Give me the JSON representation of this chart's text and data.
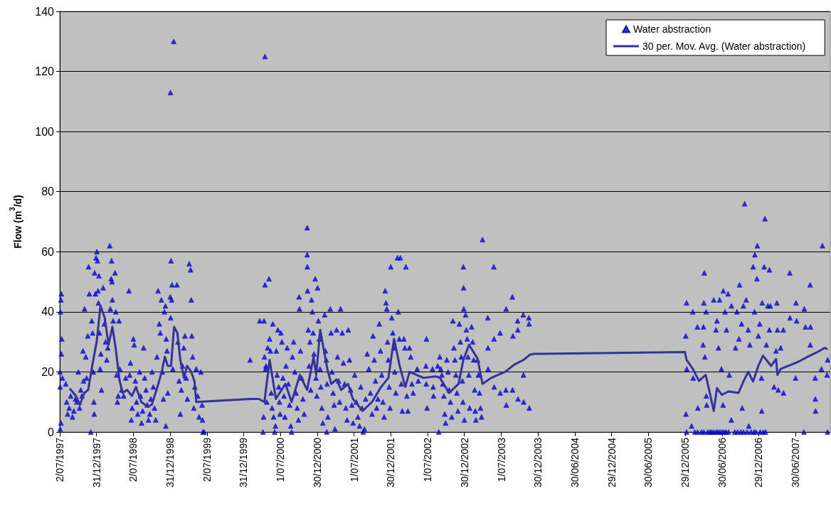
{
  "chart_data": {
    "type": "scatter",
    "ylabel": "Flow (m$^{3}$/d)",
    "xlim": [
      "1997-07-02",
      "2007-12-19"
    ],
    "xticks": [
      {
        "value": "1997-07-02",
        "label": "2/07/1997"
      },
      {
        "value": "1997-12-31",
        "label": "31/12/1997"
      },
      {
        "value": "1998-07-02",
        "label": "2/07/1998"
      },
      {
        "value": "1998-12-31",
        "label": "31/12/1998"
      },
      {
        "value": "1999-07-02",
        "label": "2/07/1999"
      },
      {
        "value": "1999-12-31",
        "label": "31/12/1999"
      },
      {
        "value": "2000-07-01",
        "label": "1/07/2000"
      },
      {
        "value": "2000-12-30",
        "label": "30/12/2000"
      },
      {
        "value": "2001-07-01",
        "label": "1/07/2001"
      },
      {
        "value": "2001-12-30",
        "label": "30/12/2001"
      },
      {
        "value": "2002-07-01",
        "label": "1/07/2002"
      },
      {
        "value": "2002-12-30",
        "label": "30/12/2002"
      },
      {
        "value": "2003-07-01",
        "label": "1/07/2003"
      },
      {
        "value": "2003-12-30",
        "label": "30/12/2003"
      },
      {
        "value": "2004-06-30",
        "label": "30/06/2004"
      },
      {
        "value": "2004-12-29",
        "label": "29/12/2004"
      },
      {
        "value": "2005-06-30",
        "label": "30/06/2005"
      },
      {
        "value": "2005-12-29",
        "label": "29/12/2005"
      },
      {
        "value": "2006-06-30",
        "label": "30/06/2006"
      },
      {
        "value": "2006-12-29",
        "label": "29/12/2006"
      },
      {
        "value": "2007-06-30",
        "label": "30/06/2007"
      }
    ],
    "ylim": [
      0,
      140
    ],
    "yticks": [
      0,
      20,
      40,
      60,
      80,
      100,
      120,
      140
    ],
    "grid": "y",
    "legend": "top right",
    "series": [
      {
        "name": "Water abstraction",
        "marker": "triangle",
        "color": "#0000ff",
        "x": [
          "1997-07-03",
          "1997-07-04",
          "1997-07-05",
          "1997-07-08",
          "1997-07-10",
          "1997-07-12",
          "1997-07-10",
          "1997-07-04",
          "1997-07-08",
          "1997-07-15",
          "1997-08-01",
          "1997-08-05",
          "1997-08-10",
          "1997-08-18",
          "1997-08-25",
          "1997-09-03",
          "1997-09-10",
          "1997-09-18",
          "1997-09-25",
          "1997-10-02",
          "1997-10-08",
          "1997-10-14",
          "1997-10-20",
          "1997-10-25",
          "1997-10-28",
          "1997-11-02",
          "1997-11-08",
          "1997-11-12",
          "1997-11-18",
          "1997-11-22",
          "1997-11-26",
          "1997-12-03",
          "1997-12-08",
          "1997-12-12",
          "1997-12-15",
          "1997-12-18",
          "1997-12-20",
          "1997-12-22",
          "1997-12-26",
          "1997-12-29",
          "1998-01-02",
          "1998-01-05",
          "1998-01-08",
          "1998-01-10",
          "1998-01-12",
          "1998-01-15",
          "1998-01-18",
          "1998-01-22",
          "1998-01-25",
          "1998-02-02",
          "1998-02-08",
          "1998-02-14",
          "1998-02-20",
          "1998-02-25",
          "1998-03-07",
          "1998-03-10",
          "1998-03-14",
          "1998-03-16",
          "1998-03-18",
          "1998-03-20",
          "1998-03-24",
          "1998-04-02",
          "1998-04-06",
          "1998-04-10",
          "1998-04-14",
          "1998-04-18",
          "1998-04-22",
          "1998-04-26",
          "1998-05-05",
          "1998-05-15",
          "1998-05-25",
          "1998-06-10",
          "1998-06-14",
          "1998-06-18",
          "1998-06-22",
          "1998-06-26",
          "1998-07-02",
          "1998-07-06",
          "1998-07-12",
          "1998-07-18",
          "1998-07-24",
          "1998-08-02",
          "1998-08-07",
          "1998-08-12",
          "1998-08-17",
          "1998-08-22",
          "1998-08-27",
          "1998-09-03",
          "1998-09-09",
          "1998-09-15",
          "1998-09-21",
          "1998-09-27",
          "1998-10-03",
          "1998-10-09",
          "1998-10-15",
          "1998-10-21",
          "1998-10-27",
          "1998-11-02",
          "1998-11-08",
          "1998-11-13",
          "1998-11-18",
          "1998-11-23",
          "1998-11-28",
          "1998-12-03",
          "1998-12-08",
          "1998-12-12",
          "1998-12-16",
          "1998-12-20",
          "1998-12-10",
          "1999-01-02",
          "1999-01-18",
          "1999-01-05",
          "1999-01-10",
          "1999-01-03",
          "1999-01-01",
          "1999-01-08",
          "1999-01-14",
          "1999-02-03",
          "1999-02-08",
          "1999-02-14",
          "1999-02-20",
          "1999-02-25",
          "1999-03-03",
          "1999-03-09",
          "1999-03-15",
          "1999-03-21",
          "1999-03-27",
          "1999-04-05",
          "1999-04-12",
          "1999-04-15",
          "1999-04-18",
          "1999-04-22",
          "1999-04-28",
          "1999-05-03",
          "1999-05-10",
          "1999-05-17",
          "1999-05-24",
          "1999-06-02",
          "1999-06-08",
          "1999-06-12",
          "1999-06-18",
          "1999-06-10",
          "2000-02-01",
          "2000-03-20",
          "2000-04-10",
          "2000-04-15",
          "2000-04-15",
          "2000-04-05",
          "2000-04-08",
          "2000-04-12",
          "2000-04-18",
          "2000-04-20",
          "2000-04-24",
          "2000-04-28",
          "2000-05-05",
          "2000-05-08",
          "2000-05-12",
          "2000-05-16",
          "2000-05-20",
          "2000-05-24",
          "2000-05-28",
          "2000-06-02",
          "2000-06-06",
          "2000-06-10",
          "2000-06-14",
          "2000-06-18",
          "2000-06-22",
          "2000-06-26",
          "2000-06-29",
          "2000-07-03",
          "2000-07-08",
          "2000-07-13",
          "2000-07-18",
          "2000-07-23",
          "2000-07-28",
          "2000-08-03",
          "2000-08-09",
          "2000-08-15",
          "2000-08-21",
          "2000-08-25",
          "2000-08-29",
          "2000-09-04",
          "2000-09-10",
          "2000-09-16",
          "2000-09-22",
          "2000-09-28",
          "2000-10-01",
          "2000-10-03",
          "2000-10-08",
          "2000-10-14",
          "2000-10-20",
          "2000-10-26",
          "2000-11-10",
          "2000-11-10",
          "2000-11-11",
          "2000-11-12",
          "2000-11-16",
          "2000-11-20",
          "2000-11-24",
          "2000-11-28",
          "2000-12-02",
          "2000-12-06",
          "2000-12-10",
          "2000-12-14",
          "2000-12-20",
          "2000-12-24",
          "2000-12-28",
          "2001-01-01",
          "2001-01-05",
          "2001-01-09",
          "2001-01-13",
          "2001-01-17",
          "2001-01-22",
          "2001-01-27",
          "2001-02-05",
          "2001-02-09",
          "2001-02-13",
          "2001-02-17",
          "2001-02-21",
          "2001-02-15",
          "2001-03-05",
          "2001-03-09",
          "2001-03-14",
          "2001-03-19",
          "2001-03-24",
          "2001-03-28",
          "2001-04-25",
          "2001-04-05",
          "2001-04-10",
          "2001-04-15",
          "2001-04-20",
          "2001-05-03",
          "2001-05-09",
          "2001-05-15",
          "2001-05-21",
          "2001-05-27",
          "2001-06-02",
          "2001-06-08",
          "2001-06-14",
          "2001-06-20",
          "2001-06-26",
          "2001-07-04",
          "2001-07-12",
          "2001-07-20",
          "2001-07-28",
          "2001-08-03",
          "2001-08-09",
          "2001-08-15",
          "2001-08-21",
          "2001-08-27",
          "2001-09-04",
          "2001-09-12",
          "2001-09-20",
          "2001-09-28",
          "2001-10-03",
          "2001-10-09",
          "2001-10-15",
          "2001-10-21",
          "2001-10-27",
          "2001-11-03",
          "2001-11-09",
          "2001-11-15",
          "2001-11-21",
          "2001-11-27",
          "2001-12-02",
          "2001-12-06",
          "2001-12-10",
          "2001-12-14",
          "2001-12-18",
          "2001-12-22",
          "2001-12-26",
          "2001-12-30",
          "2002-01-04",
          "2002-01-09",
          "2002-01-14",
          "2002-01-19",
          "2002-01-24",
          "2002-02-01",
          "2002-02-15",
          "2002-02-05",
          "2002-02-10",
          "2002-02-20",
          "2002-02-25",
          "2002-03-15",
          "2002-03-05",
          "2002-03-10",
          "2002-03-20",
          "2002-03-25",
          "2002-04-02",
          "2002-04-08",
          "2002-04-14",
          "2002-04-20",
          "2002-05-10",
          "2002-05-15",
          "2002-06-25",
          "2002-06-22",
          "2002-06-24",
          "2002-06-28",
          "2002-07-25",
          "2002-07-28",
          "2002-07-30",
          "2002-08-25",
          "2002-08-30",
          "2002-08-20",
          "2002-09-04",
          "2002-09-09",
          "2002-09-14",
          "2002-09-19",
          "2002-09-24",
          "2002-09-28",
          "2002-10-04",
          "2002-10-10",
          "2002-10-16",
          "2002-10-22",
          "2002-10-28",
          "2002-11-03",
          "2002-11-08",
          "2002-11-13",
          "2002-11-18",
          "2002-11-23",
          "2002-11-28",
          "2002-12-25",
          "2002-12-26",
          "2002-12-27",
          "2002-12-05",
          "2002-12-10",
          "2002-12-15",
          "2002-12-20",
          "2002-12-23",
          "2002-12-30",
          "2003-01-05",
          "2003-01-09",
          "2003-01-13",
          "2003-01-17",
          "2003-01-21",
          "2003-01-25",
          "2003-02-04",
          "2003-02-09",
          "2003-02-14",
          "2003-02-19",
          "2003-02-25",
          "2003-02-22",
          "2003-03-30",
          "2003-03-05",
          "2003-03-10",
          "2003-03-15",
          "2003-03-20",
          "2003-03-25",
          "2003-04-25",
          "2003-04-26",
          "2003-04-27",
          "2003-05-25",
          "2003-05-26",
          "2003-05-27",
          "2003-06-25",
          "2003-06-26",
          "2003-07-25",
          "2003-07-24",
          "2003-07-26",
          "2003-08-25",
          "2003-08-26",
          "2003-08-28",
          "2003-09-20",
          "2003-09-21",
          "2003-09-22",
          "2003-10-18",
          "2003-10-19",
          "2003-10-20",
          "2003-11-15",
          "2003-11-16",
          "2003-11-17",
          "2006-01-05",
          "2006-01-01",
          "2006-01-06",
          "2006-01-02",
          "2006-02-05",
          "2006-02-07",
          "2006-02-28",
          "2006-03-02",
          "2006-03-30",
          "2006-04-01",
          "2006-04-03",
          "2006-04-12",
          "2006-03-28",
          "2006-04-06",
          "2006-04-13",
          "2006-04-15",
          "2006-05-20",
          "2006-06-05",
          "2006-05-31",
          "2006-06-12",
          "2006-06-18",
          "2006-06-27",
          "2006-07-05",
          "2006-07-06",
          "2006-07-15",
          "2006-07-22",
          "2006-07-30",
          "2006-08-05",
          "2006-08-15",
          "2006-08-16",
          "2006-09-05",
          "2006-09-12",
          "2006-09-25",
          "2006-09-22",
          "2006-10-05",
          "2006-10-08",
          "2006-10-14",
          "2006-10-20",
          "2006-10-28",
          "2006-11-07",
          "2006-11-10",
          "2006-11-15",
          "2006-12-01",
          "2006-12-08",
          "2006-12-10",
          "2006-12-22",
          "2006-12-20",
          "2006-12-27",
          "2007-01-03",
          "2007-01-12",
          "2007-01-13",
          "2007-01-15",
          "2007-01-25",
          "2007-01-29",
          "2007-02-05",
          "2007-02-12",
          "2007-02-20",
          "2007-02-20",
          "2007-02-25",
          "2007-03-15",
          "2007-03-25",
          "2007-03-29",
          "2007-04-01",
          "2007-04-05",
          "2007-04-17",
          "2007-04-30",
          "2007-05-01",
          "2007-06-01",
          "2007-06-02",
          "2007-06-30",
          "2007-07-02",
          "2007-07-05",
          "2007-08-10",
          "2007-08-12",
          "2007-08-18",
          "2007-09-10",
          "2007-09-11",
          "2007-09-12",
          "2007-10-05",
          "2007-10-06",
          "2007-10-07",
          "2007-11-05",
          "2007-11-10",
          "2007-12-05",
          "2007-12-06",
          "2007-12-03",
          "2006-01-05",
          "2006-01-30",
          "2006-02-15",
          "2006-03-01",
          "2006-03-20",
          "2006-04-01",
          "2006-04-20",
          "2006-05-01",
          "2006-05-10",
          "2006-05-20",
          "2006-06-01",
          "2006-06-10",
          "2006-06-20",
          "2006-07-01",
          "2006-07-10",
          "2006-07-20",
          "2006-08-01",
          "2006-09-01",
          "2006-09-15",
          "2006-10-01",
          "2006-10-15",
          "2006-11-01",
          "2006-11-20",
          "2006-12-05",
          "2006-12-15",
          "2007-01-05",
          "2007-01-20",
          "2007-02-01"
        ],
        "values": [
          20,
          15,
          40,
          44,
          46,
          31,
          26,
          1,
          3,
          18,
          16,
          10,
          6,
          8,
          12,
          5,
          7,
          11,
          10,
          20,
          8,
          14,
          12,
          27,
          17,
          41,
          25,
          18,
          32,
          55,
          46,
          0,
          37,
          33,
          20,
          10,
          6,
          53,
          46,
          58,
          60,
          57,
          47,
          43,
          52,
          33,
          21,
          26,
          14,
          48,
          36,
          30,
          24,
          28,
          62,
          41,
          51,
          57,
          50,
          44,
          37,
          53,
          40,
          19,
          10,
          12,
          37,
          21,
          14,
          12,
          18,
          47,
          19,
          23,
          4,
          8,
          31,
          29,
          17,
          10,
          6,
          20,
          12,
          3,
          7,
          28,
          18,
          14,
          9,
          4,
          6,
          11,
          20,
          15,
          8,
          4,
          25,
          47,
          36,
          33,
          44,
          20,
          11,
          40,
          42,
          31,
          27,
          13,
          2,
          113,
          130,
          57,
          49,
          38,
          45,
          44,
          21,
          49,
          30,
          17,
          6,
          14,
          22,
          28,
          32,
          18,
          11,
          56,
          54,
          44,
          32,
          25,
          8,
          15,
          21,
          12,
          5,
          20,
          9,
          0,
          0,
          4,
          24,
          37,
          37,
          49,
          125,
          0,
          5,
          25,
          21,
          22,
          10,
          28,
          51,
          31,
          27,
          13,
          8,
          36,
          5,
          0,
          2,
          27,
          19,
          34,
          15,
          10,
          6,
          33,
          30,
          18,
          12,
          5,
          22,
          28,
          16,
          9,
          2,
          0,
          25,
          30,
          20,
          13,
          8,
          4,
          45,
          41,
          27,
          18,
          11,
          6,
          68,
          59,
          55,
          47,
          34,
          22,
          30,
          14,
          44,
          40,
          33,
          26,
          51,
          18,
          12,
          48,
          37,
          31,
          21,
          15,
          8,
          3,
          39,
          27,
          24,
          16,
          5,
          0,
          41,
          33,
          20,
          13,
          9,
          1,
          41,
          34,
          25,
          17,
          10,
          33,
          23,
          16,
          8,
          4,
          34,
          24,
          14,
          9,
          3,
          19,
          10,
          5,
          2,
          15,
          8,
          0,
          1,
          11,
          26,
          21,
          13,
          6,
          32,
          24,
          17,
          8,
          11,
          36,
          27,
          19,
          10,
          5,
          47,
          43,
          41,
          30,
          24,
          15,
          8,
          55,
          38,
          33,
          28,
          20,
          13,
          58,
          58,
          40,
          31,
          16,
          7,
          55,
          31,
          28,
          12,
          7,
          28,
          25,
          16,
          13,
          21,
          17,
          31,
          22,
          16,
          8,
          21,
          15,
          12,
          0,
          25,
          22,
          21,
          19,
          16,
          12,
          6,
          3,
          24,
          20,
          14,
          10,
          5,
          37,
          28,
          24,
          19,
          13,
          7,
          55,
          48,
          41,
          36,
          30,
          25,
          17,
          10,
          4,
          39,
          34,
          31,
          25,
          19,
          8,
          35,
          30,
          24,
          14,
          4,
          7,
          64,
          24,
          19,
          13,
          8,
          5,
          38,
          28,
          21,
          55,
          31,
          15,
          33,
          13,
          41,
          14,
          9,
          45,
          14,
          32,
          37,
          34,
          11,
          39,
          19,
          10,
          38,
          36,
          8,
          43,
          32,
          21,
          6,
          40,
          18,
          35,
          8,
          35,
          43,
          53,
          40,
          29,
          25,
          12,
          9,
          44,
          37,
          34,
          28,
          44,
          21,
          9,
          47,
          40,
          34,
          46,
          19,
          4,
          42,
          28,
          40,
          49,
          31,
          36,
          8,
          42,
          76,
          44,
          34,
          2,
          29,
          55,
          40,
          59,
          62,
          51,
          32,
          36,
          18,
          7,
          43,
          55,
          71,
          29,
          42,
          54,
          34,
          42,
          15,
          27,
          43,
          34,
          14,
          28,
          34,
          13,
          53,
          38,
          18,
          43,
          37,
          0,
          41,
          35,
          49,
          29,
          35,
          18,
          11,
          7,
          21,
          62,
          0,
          24,
          19,
          0,
          2,
          0,
          0,
          0,
          0,
          0,
          0,
          0,
          0,
          0,
          0,
          0,
          0,
          0,
          0,
          0,
          0,
          0,
          0,
          0,
          0,
          0,
          0,
          0,
          0,
          0,
          0
        ]
      },
      {
        "name": "30 per. Mov. Avg. (Water abstraction)",
        "type": "line",
        "marker": "none",
        "color": "#333399",
        "x": [
          "1997-08-20",
          "1997-09-20",
          "1997-10-10",
          "1997-11-01",
          "1997-11-20",
          "1997-12-10",
          "1998-01-01",
          "1998-01-20",
          "1998-02-10",
          "1998-03-01",
          "1998-03-20",
          "1998-04-05",
          "1998-04-25",
          "1998-05-10",
          "1998-06-01",
          "1998-06-25",
          "1998-07-15",
          "1998-08-10",
          "1998-09-10",
          "1998-10-01",
          "1998-10-25",
          "1998-11-20",
          "1998-12-05",
          "1998-12-20",
          "1999-01-05",
          "1999-01-20",
          "1999-02-05",
          "1999-02-20",
          "1999-03-10",
          "1999-03-25",
          "1999-04-15",
          "1999-05-01",
          "1999-05-10",
          "2000-02-05",
          "2000-03-15",
          "2000-04-12",
          "2000-05-08",
          "2000-06-08",
          "2000-07-25",
          "2000-08-25",
          "2000-10-05",
          "2000-11-10",
          "2000-12-12",
          "2000-12-25",
          "2001-01-14",
          "2001-02-18",
          "2001-03-10",
          "2001-04-05",
          "2001-04-28",
          "2001-06-01",
          "2001-06-25",
          "2001-08-12",
          "2001-09-28",
          "2001-11-12",
          "2001-12-18",
          "2002-01-15",
          "2002-02-12",
          "2002-03-12",
          "2002-04-02",
          "2002-06-10",
          "2002-08-10",
          "2002-08-31",
          "2002-10-15",
          "2002-12-01",
          "2002-12-25",
          "2003-01-22",
          "2003-03-05",
          "2003-03-30",
          "2003-05-12",
          "2003-07-20",
          "2003-09-05",
          "2003-10-20",
          "2003-11-20",
          "2003-12-10",
          "2005-12-28",
          "2006-01-05",
          "2006-02-05",
          "2006-03-08",
          "2006-04-10",
          "2006-04-25",
          "2006-05-20",
          "2006-06-05",
          "2006-06-29",
          "2006-08-02",
          "2006-09-20",
          "2006-10-14",
          "2006-11-07",
          "2006-12-01",
          "2006-12-27",
          "2007-01-19",
          "2007-03-01",
          "2007-03-25",
          "2007-04-01",
          "2007-04-17",
          "2007-07-08",
          "2007-08-25",
          "2007-10-13",
          "2007-11-22",
          "2007-12-05"
        ],
        "values": [
          14.5,
          12,
          9,
          13,
          14,
          22,
          30,
          42,
          38,
          29,
          35,
          28,
          17,
          13,
          14,
          12,
          15,
          10,
          8.5,
          9,
          14,
          20,
          25,
          22,
          22,
          35,
          33,
          24,
          18,
          22,
          20,
          17,
          10,
          11,
          11,
          10,
          24,
          11,
          16,
          10,
          19,
          14,
          25,
          19,
          34,
          21,
          16,
          17.5,
          14,
          16,
          11,
          7,
          10,
          15,
          18,
          31,
          22,
          15,
          20,
          18,
          18.5,
          18,
          13,
          16,
          24,
          29,
          24.5,
          16,
          18,
          20,
          22.5,
          24,
          25.7,
          26,
          26.6,
          24,
          21,
          17,
          19,
          14.6,
          7,
          14.6,
          12.4,
          13.5,
          13,
          16.8,
          20,
          16.8,
          22,
          25.4,
          22,
          24.3,
          19,
          21,
          23.2,
          24.9,
          26.5,
          28,
          27.5
        ]
      }
    ]
  }
}
